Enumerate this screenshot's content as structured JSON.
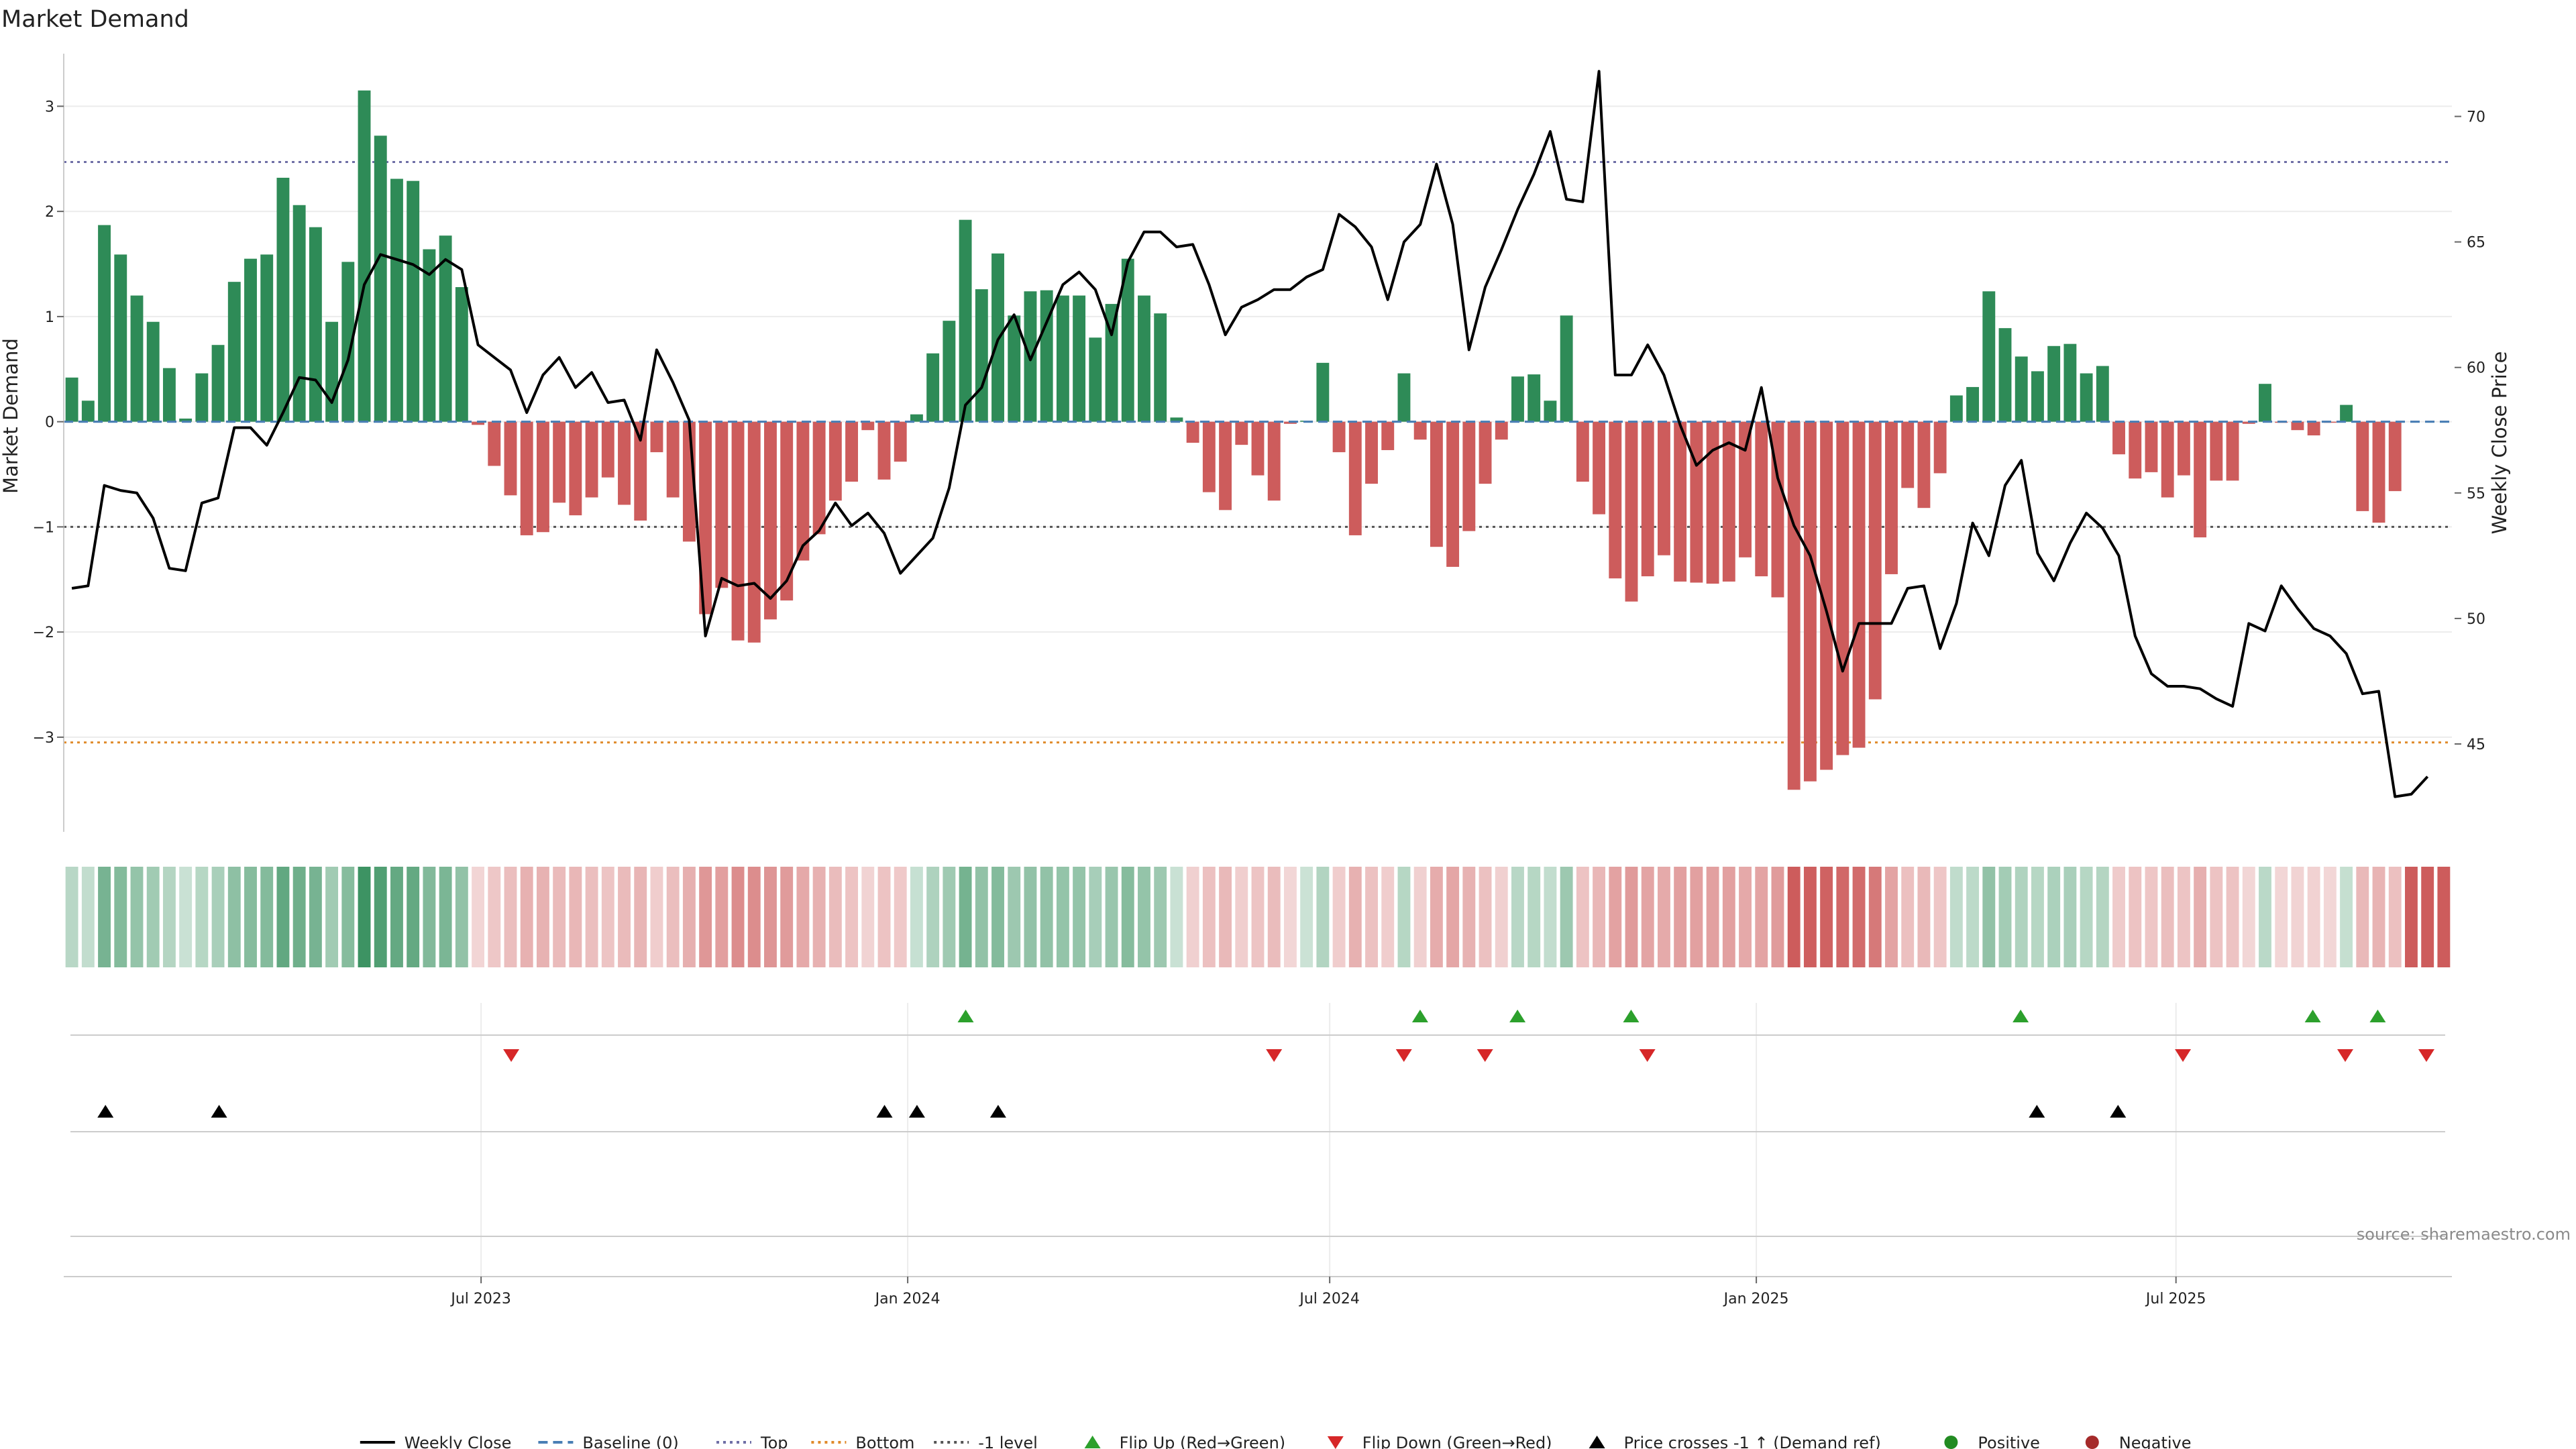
{
  "chart_data": {
    "type": "bar",
    "title": "Market Demand",
    "ylabel": "Market Demand",
    "y2label": "Weekly Close Price",
    "ylim": [
      -3.9,
      3.5
    ],
    "y2lim": [
      41.5,
      72.5
    ],
    "yticks": [
      3,
      2,
      1,
      0,
      -1,
      -2,
      -3
    ],
    "ytick_labels": [
      "3",
      "2",
      "1",
      "0",
      "−1",
      "−2",
      "−3"
    ],
    "y2ticks": [
      70,
      65,
      60,
      55,
      50,
      45
    ],
    "y2tick_labels": [
      "70",
      "65",
      "60",
      "55",
      "50",
      "45"
    ],
    "x_start": "2023-01-02",
    "x_end": "2025-10-28",
    "xticks": [
      "2023-07-01",
      "2024-01-01",
      "2024-07-01",
      "2025-01-01",
      "2025-07-01"
    ],
    "xtick_labels": [
      "Jul 2023",
      "Jan 2024",
      "Jul 2024",
      "Jan 2025",
      "Jul 2025"
    ],
    "reference_lines": [
      {
        "name": "Baseline (0)",
        "value": 0,
        "color": "#4a7fb5",
        "style": "dashed"
      },
      {
        "name": "Top",
        "value": 2.47,
        "color": "#6f6fa6",
        "style": "dotted"
      },
      {
        "name": "Bottom",
        "value": -3.05,
        "color": "#e08a2a",
        "style": "dotted"
      },
      {
        "name": "-1 level",
        "value": -1,
        "color": "#555555",
        "style": "dotted"
      }
    ],
    "colors": {
      "positive": "#2e8b57",
      "negative": "#cd5c5c",
      "price": "#000000",
      "flip_up": "#2ca02c",
      "flip_down": "#d62728",
      "price_cross": "#000000",
      "legend_positive": "#228b22",
      "legend_negative": "#a52a2a"
    },
    "dates": [
      "2023-01-06",
      "2023-01-13",
      "2023-01-20",
      "2023-01-27",
      "2023-02-03",
      "2023-02-10",
      "2023-02-17",
      "2023-02-24",
      "2023-03-03",
      "2023-03-10",
      "2023-03-17",
      "2023-03-24",
      "2023-03-31",
      "2023-04-07",
      "2023-04-14",
      "2023-04-21",
      "2023-04-28",
      "2023-05-05",
      "2023-05-12",
      "2023-05-19",
      "2023-05-26",
      "2023-06-02",
      "2023-06-09",
      "2023-06-16",
      "2023-06-23",
      "2023-06-30",
      "2023-07-07",
      "2023-07-14",
      "2023-07-21",
      "2023-07-28",
      "2023-08-04",
      "2023-08-11",
      "2023-08-18",
      "2023-08-25",
      "2023-09-01",
      "2023-09-08",
      "2023-09-15",
      "2023-09-22",
      "2023-09-29",
      "2023-10-06",
      "2023-10-13",
      "2023-10-20",
      "2023-10-27",
      "2023-11-03",
      "2023-11-10",
      "2023-11-17",
      "2023-11-24",
      "2023-12-01",
      "2023-12-08",
      "2023-12-15",
      "2023-12-22",
      "2023-12-29",
      "2024-01-05",
      "2024-01-12",
      "2024-01-19",
      "2024-01-26",
      "2024-02-02",
      "2024-02-09",
      "2024-02-16",
      "2024-02-23",
      "2024-03-01",
      "2024-03-08",
      "2024-03-15",
      "2024-03-22",
      "2024-03-29",
      "2024-04-05",
      "2024-04-12",
      "2024-04-19",
      "2024-04-26",
      "2024-05-03",
      "2024-05-10",
      "2024-05-17",
      "2024-05-24",
      "2024-05-31",
      "2024-06-07",
      "2024-06-14",
      "2024-06-21",
      "2024-06-28",
      "2024-07-05",
      "2024-07-12",
      "2024-07-19",
      "2024-07-26",
      "2024-08-02",
      "2024-08-09",
      "2024-08-16",
      "2024-08-23",
      "2024-08-30",
      "2024-09-06",
      "2024-09-13",
      "2024-09-20",
      "2024-09-27",
      "2024-10-04",
      "2024-10-11",
      "2024-10-18",
      "2024-10-25",
      "2024-11-01",
      "2024-11-08",
      "2024-11-15",
      "2024-11-22",
      "2024-11-29",
      "2024-12-06",
      "2024-12-13",
      "2024-12-20",
      "2024-12-27",
      "2025-01-03",
      "2025-01-10",
      "2025-01-17",
      "2025-01-24",
      "2025-01-31",
      "2025-02-07",
      "2025-02-14",
      "2025-02-21",
      "2025-02-28",
      "2025-03-07",
      "2025-03-14",
      "2025-03-21",
      "2025-03-28",
      "2025-04-04",
      "2025-04-11",
      "2025-04-18",
      "2025-04-25",
      "2025-05-02",
      "2025-05-09",
      "2025-05-16",
      "2025-05-23",
      "2025-05-30",
      "2025-06-06",
      "2025-06-13",
      "2025-06-20",
      "2025-06-27",
      "2025-07-04",
      "2025-07-11",
      "2025-07-18",
      "2025-07-25",
      "2025-08-01",
      "2025-08-08",
      "2025-08-15",
      "2025-08-22",
      "2025-08-29",
      "2025-09-05",
      "2025-09-12",
      "2025-09-19",
      "2025-09-26",
      "2025-10-03",
      "2025-10-10",
      "2025-10-17",
      "2025-10-24"
    ],
    "demand": [
      0.42,
      0.2,
      1.87,
      1.59,
      1.2,
      0.95,
      0.51,
      0.03,
      0.46,
      0.73,
      1.33,
      1.55,
      1.59,
      2.32,
      2.06,
      1.85,
      0.95,
      1.52,
      3.15,
      2.72,
      2.31,
      2.29,
      1.64,
      1.77,
      1.28,
      -0.03,
      -0.42,
      -0.7,
      -1.08,
      -1.05,
      -0.77,
      -0.89,
      -0.72,
      -0.53,
      -0.79,
      -0.94,
      -0.29,
      -0.72,
      -1.14,
      -1.83,
      -1.58,
      -2.08,
      -2.1,
      -1.88,
      -1.7,
      -1.32,
      -1.07,
      -0.75,
      -0.57,
      -0.08,
      -0.55,
      -0.38,
      0.07,
      0.65,
      0.96,
      1.92,
      1.26,
      1.6,
      1.01,
      1.24,
      1.25,
      1.2,
      1.2,
      0.8,
      1.12,
      1.55,
      1.2,
      1.03,
      0.04,
      -0.2,
      -0.67,
      -0.84,
      -0.22,
      -0.51,
      -0.75,
      -0.02,
      0.01,
      0.56,
      -0.29,
      -1.08,
      -0.59,
      -0.27,
      0.46,
      -0.17,
      -1.19,
      -1.38,
      -1.04,
      -0.59,
      -0.17,
      0.43,
      0.45,
      0.2,
      1.01,
      -0.57,
      -0.88,
      -1.49,
      -1.71,
      -1.47,
      -1.27,
      -1.52,
      -1.53,
      -1.54,
      -1.52,
      -1.29,
      -1.47,
      -1.67,
      -3.5,
      -3.42,
      -3.31,
      -3.17,
      -3.1,
      -2.64,
      -1.45,
      -0.63,
      -0.82,
      -0.49,
      0.25,
      0.33,
      1.24,
      0.89,
      0.62,
      0.48,
      0.72,
      0.74,
      0.46,
      0.53,
      -0.31,
      -0.54,
      -0.48,
      -0.72,
      -0.51,
      -1.1,
      -0.56,
      -0.56,
      -0.02,
      0.36,
      -0.01,
      -0.08,
      -0.13,
      -0.01,
      0.16,
      -0.85,
      -0.96,
      -0.66
    ],
    "weekly_close": [
      51.2,
      51.3,
      55.3,
      55.1,
      55.0,
      54.0,
      52.0,
      51.9,
      54.6,
      54.8,
      57.6,
      57.6,
      56.9,
      58.2,
      59.6,
      59.5,
      58.6,
      60.3,
      63.3,
      64.5,
      64.3,
      64.1,
      63.7,
      64.3,
      63.9,
      60.9,
      60.4,
      59.9,
      58.2,
      59.7,
      60.4,
      59.2,
      59.8,
      58.6,
      58.7,
      57.1,
      60.7,
      59.4,
      57.9,
      49.3,
      51.6,
      51.3,
      51.4,
      50.8,
      51.5,
      52.9,
      53.5,
      54.6,
      53.7,
      54.2,
      53.4,
      51.8,
      52.5,
      53.2,
      55.2,
      58.5,
      59.2,
      61.1,
      62.1,
      60.3,
      61.8,
      63.3,
      63.8,
      63.1,
      61.3,
      64.2,
      65.4,
      65.4,
      64.8,
      64.9,
      63.3,
      61.3,
      62.4,
      62.7,
      63.1,
      63.1,
      63.6,
      63.9,
      66.1,
      65.6,
      64.8,
      62.7,
      65.0,
      65.7,
      68.1,
      65.7,
      60.7,
      63.2,
      64.7,
      66.3,
      67.7,
      69.4,
      66.7,
      66.6,
      71.8,
      59.7,
      59.7,
      60.9,
      59.7,
      57.7,
      56.1,
      56.7,
      57.0,
      56.7,
      59.2,
      55.6,
      53.7,
      52.5,
      50.3,
      47.9,
      49.8,
      49.8,
      49.8,
      51.2,
      51.3,
      48.8,
      50.6,
      53.8,
      52.5,
      55.3,
      56.3,
      52.6,
      51.5,
      53.0,
      54.2,
      53.6,
      52.5,
      49.3,
      47.8,
      47.3,
      47.3,
      47.2,
      46.8,
      46.5,
      49.8,
      49.5,
      51.3,
      50.4,
      49.6,
      49.3,
      48.6,
      47.0,
      47.1,
      42.9,
      43.0,
      43.7
    ],
    "flip_up_dates": [
      "2024-01-26",
      "2024-08-09",
      "2024-09-20",
      "2024-11-08",
      "2025-04-25",
      "2025-08-29",
      "2025-09-26"
    ],
    "flip_down_dates": [
      "2023-07-14",
      "2024-06-07",
      "2024-08-02",
      "2024-09-06",
      "2024-11-15",
      "2025-07-04",
      "2025-09-12",
      "2025-10-17"
    ],
    "price_cross_dates": [
      "2023-01-20",
      "2023-03-10",
      "2023-12-22",
      "2024-01-05",
      "2024-02-09",
      "2025-05-02",
      "2025-06-06"
    ],
    "legend": [
      {
        "label": "Weekly Close",
        "kind": "line-solid",
        "color": "#000000"
      },
      {
        "label": "Baseline (0)",
        "kind": "line-dashed",
        "color": "#4a7fb5"
      },
      {
        "label": "Top",
        "kind": "line-dotted",
        "color": "#6f6fa6"
      },
      {
        "label": "Bottom",
        "kind": "line-dotted",
        "color": "#e08a2a"
      },
      {
        "label": "-1 level",
        "kind": "line-dotted",
        "color": "#555555"
      },
      {
        "label": "Flip Up (Red→Green)",
        "kind": "triangle-up",
        "color": "#2ca02c"
      },
      {
        "label": "Flip Down (Green→Red)",
        "kind": "triangle-down",
        "color": "#d62728"
      },
      {
        "label": "Price crosses -1 ↑ (Demand ref)",
        "kind": "triangle-up",
        "color": "#000000"
      },
      {
        "label": "Positive",
        "kind": "dot",
        "color": "#228b22"
      },
      {
        "label": "Negative",
        "kind": "dot",
        "color": "#a52a2a"
      }
    ],
    "legend_position": "bottom-center",
    "grid": true,
    "source": "source: sharemaestro.com"
  }
}
